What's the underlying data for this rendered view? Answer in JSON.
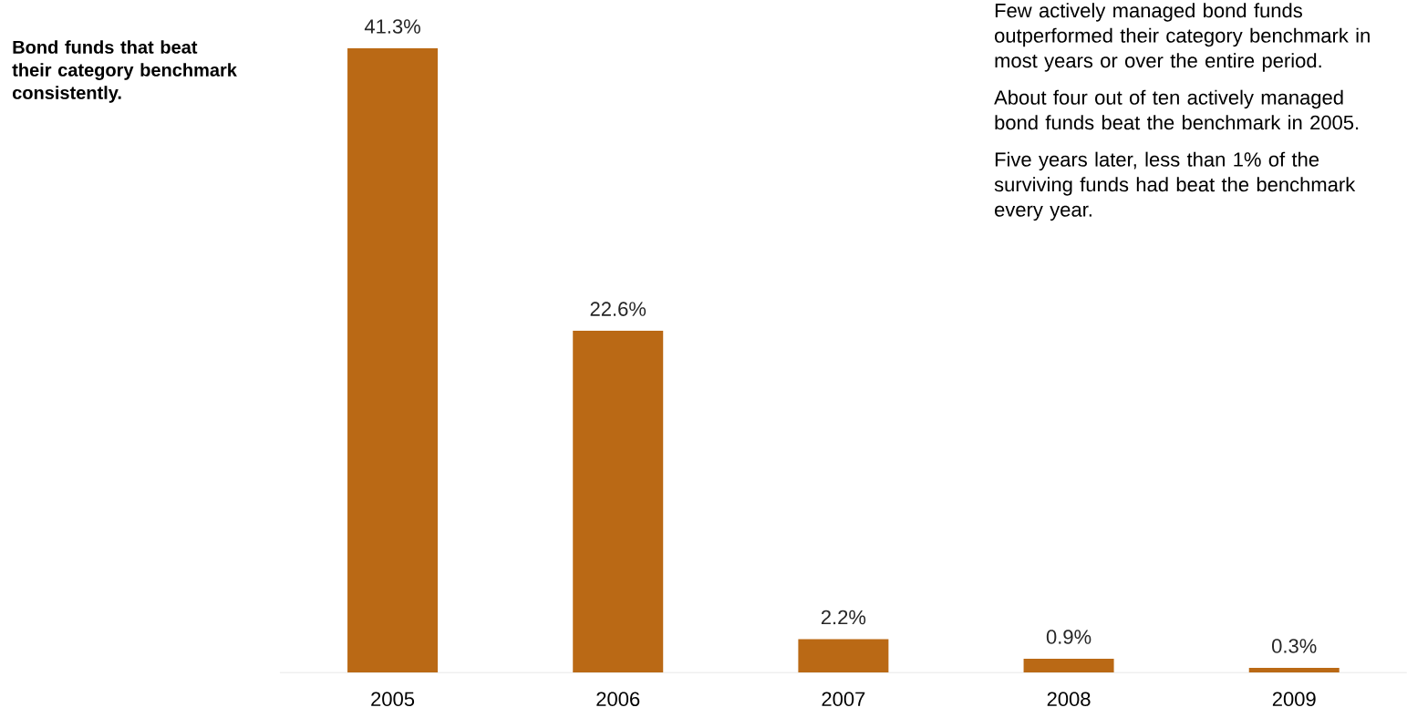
{
  "chart_data": {
    "type": "bar",
    "title": "Bond funds that beat their category benchmark consistently.",
    "categories": [
      "2005",
      "2006",
      "2007",
      "2008",
      "2009"
    ],
    "values": [
      41.3,
      22.6,
      2.2,
      0.9,
      0.3
    ],
    "value_labels": [
      "41.3%",
      "22.6%",
      "2.2%",
      "0.9%",
      "0.3%"
    ],
    "color": "#ba6915",
    "annotations": [
      "Few actively managed bond funds outperformed their category benchmark in most years or over the entire period.",
      "About four out of ten actively managed bond funds beat the benchmark in 2005.",
      "Five years later, less than 1% of the surviving funds had beat the benchmark every year."
    ]
  }
}
